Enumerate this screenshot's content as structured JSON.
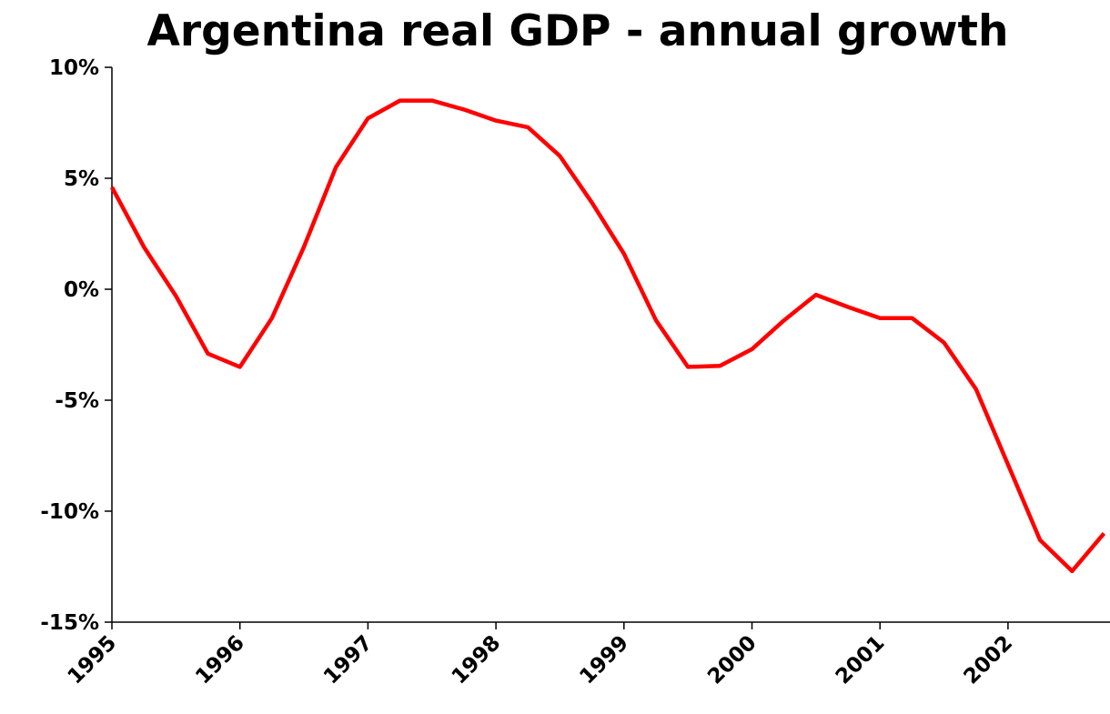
{
  "chart_data": {
    "type": "line",
    "title": "Argentina real GDP - annual growth",
    "xlabel": "",
    "ylabel": "",
    "ylim": [
      -15,
      10
    ],
    "y_ticks": [
      10,
      5,
      0,
      -5,
      -10,
      -15
    ],
    "y_tick_labels": [
      "10%",
      "5%",
      "0%",
      "-5%",
      "-10%",
      "-15%"
    ],
    "x_tick_labels": [
      "1995",
      "1996",
      "1997",
      "1998",
      "1999",
      "2000",
      "2001",
      "2002"
    ],
    "grid": false,
    "legend": "none",
    "series": [
      {
        "color": "#ff0000",
        "x": [
          1995.0,
          1995.25,
          1995.5,
          1995.75,
          1996.0,
          1996.25,
          1996.5,
          1996.75,
          1997.0,
          1997.25,
          1997.5,
          1997.75,
          1998.0,
          1998.25,
          1998.5,
          1998.75,
          1999.0,
          1999.25,
          1999.5,
          1999.75,
          2000.0,
          2000.25,
          2000.5,
          2000.75,
          2001.0,
          2001.25,
          2001.5,
          2001.75,
          2002.0,
          2002.25,
          2002.5,
          2002.75
        ],
        "values": [
          4.6,
          1.9,
          -0.3,
          -2.9,
          -3.5,
          -1.3,
          1.9,
          5.5,
          7.7,
          8.5,
          8.5,
          8.1,
          7.6,
          7.3,
          6.0,
          3.9,
          1.6,
          -1.4,
          -3.5,
          -3.45,
          -2.7,
          -1.4,
          -0.25,
          -0.8,
          -1.3,
          -1.3,
          -2.4,
          -4.5,
          -7.9,
          -11.3,
          -12.7,
          -11.0
        ]
      }
    ]
  }
}
